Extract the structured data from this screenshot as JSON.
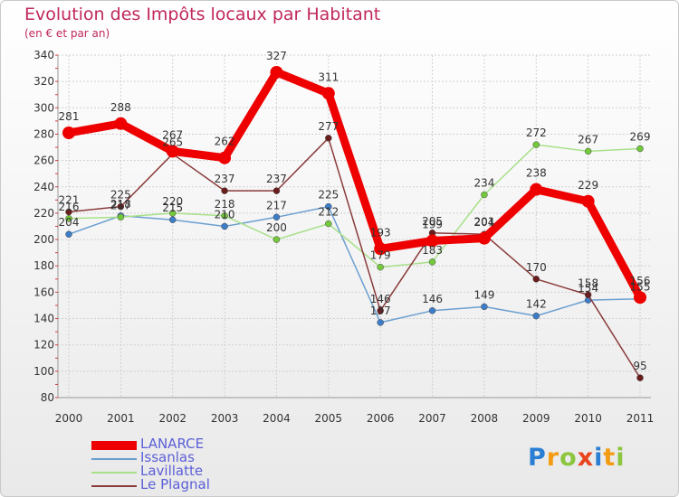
{
  "header": {
    "title": "Evolution des Impôts locaux par Habitant",
    "subtitle": "(en € et par an)"
  },
  "logo": {
    "text": "Proxiti",
    "letters": [
      "P",
      "r",
      "o",
      "x",
      "i",
      "t",
      "i"
    ],
    "colors": [
      "#2a7fd4",
      "#f39c12",
      "#8cc63f",
      "#e8441e",
      "#2a7fd4",
      "#f39c12",
      "#8cc63f"
    ]
  },
  "chart_data": {
    "type": "line",
    "title": "Evolution des Impôts locaux par Habitant",
    "subtitle": "(en € et par an)",
    "xlabel": "",
    "ylabel": "",
    "x": [
      "2000",
      "2001",
      "2002",
      "2003",
      "2004",
      "2005",
      "2006",
      "2007",
      "2008",
      "2009",
      "2010",
      "2011"
    ],
    "ylim": [
      80,
      340
    ],
    "yticks": [
      80,
      100,
      120,
      140,
      160,
      180,
      200,
      220,
      240,
      260,
      280,
      300,
      320,
      340
    ],
    "grid": true,
    "legend_position": "bottom-left",
    "series": [
      {
        "name": "LANARCE",
        "color": "#ee0000",
        "dot_color": "#ee0000",
        "emphasis": true,
        "values": [
          281,
          288,
          267,
          262,
          327,
          311,
          193,
          199,
          201,
          238,
          229,
          156
        ]
      },
      {
        "name": "Issanlas",
        "color": "#6b9fd0",
        "dot_color": "#3d7dc8",
        "emphasis": false,
        "values": [
          204,
          218,
          215,
          210,
          217,
          225,
          137,
          146,
          149,
          142,
          154,
          155
        ]
      },
      {
        "name": "Lavillatte",
        "color": "#a8e08a",
        "dot_color": "#73c83c",
        "emphasis": false,
        "values": [
          216,
          217,
          220,
          218,
          200,
          212,
          179,
          183,
          234,
          272,
          267,
          269
        ]
      },
      {
        "name": "Le Plagnal",
        "color": "#8a3a3a",
        "dot_color": "#6b1c1c",
        "emphasis": false,
        "values": [
          221,
          225,
          265,
          237,
          237,
          277,
          146,
          205,
          204,
          170,
          158,
          95
        ]
      }
    ]
  }
}
